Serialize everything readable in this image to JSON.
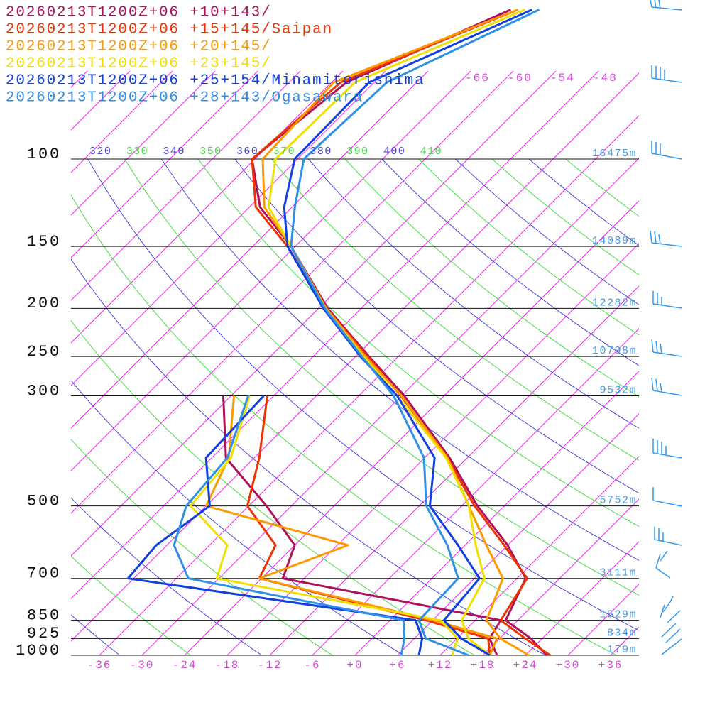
{
  "chart_data": {
    "type": "skewt",
    "pressure": [
      1000,
      925,
      850,
      700,
      600,
      500,
      400,
      300,
      250,
      200,
      150,
      125,
      100,
      70,
      50
    ],
    "ylim": [
      1000,
      100
    ],
    "yticks": [
      1000,
      925,
      850,
      700,
      500,
      300,
      250,
      200,
      150,
      100
    ],
    "tick_heights": [
      {
        "value": 179,
        "label": "179m"
      },
      {
        "value": 834,
        "label": "834m"
      },
      {
        "value": 1529,
        "label": "1529m"
      },
      {
        "value": 3111,
        "label": "3111m"
      },
      {
        "value": 5752,
        "label": "5752m"
      },
      {
        "value": 9532,
        "label": "9532m"
      },
      {
        "value": 10798,
        "label": "10798m"
      },
      {
        "value": 12282,
        "label": "12282m"
      },
      {
        "value": 14089,
        "label": "14089m"
      },
      {
        "value": 16475,
        "label": "16475m"
      }
    ],
    "xlim": [
      -40,
      40
    ],
    "xticks": [
      -36,
      -30,
      -24,
      -18,
      -12,
      {
        "value": -6,
        "label": "-6"
      },
      {
        "value": 0,
        "label": "+0"
      },
      {
        "value": 6,
        "label": "+6"
      },
      {
        "value": 12,
        "label": "+12"
      },
      {
        "value": 18,
        "label": "+18"
      },
      {
        "value": 24,
        "label": "+24"
      },
      {
        "value": 30,
        "label": "+30"
      },
      {
        "value": 36,
        "label": "+36"
      }
    ],
    "isotherm_labels": [
      -66,
      -60,
      -54,
      -48
    ],
    "isotherm_color": "#dd33dd",
    "theta_labels": [
      320,
      330,
      340,
      350,
      360,
      370,
      380,
      390,
      400,
      410
    ],
    "adiabat_colors": [
      "#4848dd",
      "#44dd44"
    ],
    "series": [
      {
        "name": "20260213T1200Z+06 +10+143/",
        "color": "#b0105a",
        "temperature": [
          27,
          22.4,
          16.3,
          13.2,
          6,
          -3.8,
          -14.5,
          -29.6,
          -40.1,
          -52.7,
          -66.6,
          -76.5,
          -84.4,
          -81.9,
          -69
        ],
        "dewpoint": [
          20,
          16.6,
          15.6,
          -21,
          -24,
          -33.5,
          -46,
          -55.1,
          null,
          null,
          null,
          null,
          null,
          null,
          null
        ]
      },
      {
        "name": "20260213T1200Z+06 +15+145/Saipan",
        "color": "#ee3300",
        "temperature": [
          27.5,
          21.6,
          15.6,
          13.4,
          5.5,
          -4.2,
          -14.8,
          -30.1,
          -40.3,
          -52.9,
          -67.1,
          -77.1,
          -84.4,
          -82.7,
          -68
        ],
        "dewpoint": [
          19,
          16.4,
          5.1,
          -24.3,
          -26.7,
          -36.2,
          -41.3,
          -48.9,
          null,
          null,
          null,
          null,
          null,
          null,
          null
        ]
      },
      {
        "name": "20260213T1200Z+06 +20+145/",
        "color": "#ff9900",
        "temperature": [
          24.5,
          18.1,
          13.6,
          10,
          3,
          -5,
          -14.8,
          -30,
          -40.6,
          -52.9,
          -66.6,
          -75.9,
          -82.9,
          -83.7,
          -68
        ],
        "dewpoint": [
          19,
          17.6,
          6.1,
          -24.3,
          -16.5,
          -42,
          -45.6,
          -53.6,
          null,
          null,
          null,
          null,
          null,
          null,
          null
        ]
      },
      {
        "name": "20260213T1200Z+06 +23+145/",
        "color": "#f0e000",
        "temperature": [
          19,
          13.6,
          10.1,
          7.4,
          1.5,
          -5,
          -15,
          -30.6,
          -40.9,
          -53.1,
          -66.6,
          -75.3,
          -81.1,
          -80.7,
          -67
        ],
        "dewpoint": [
          13.7,
          12.1,
          7.1,
          -30.3,
          -33.5,
          -44.2,
          -45.3,
          -51.4,
          null,
          null,
          null,
          null,
          null,
          null,
          null
        ]
      },
      {
        "name": "20260213T1200Z+06 +25+154/Minamitorishima",
        "color": "#1040e0",
        "temperature": [
          19,
          12.6,
          7.6,
          6.7,
          -1,
          -10.5,
          -16.6,
          -30.6,
          -41.3,
          -53.3,
          -67.1,
          -73.1,
          -78.4,
          -78.7,
          -66
        ],
        "dewpoint": [
          9,
          7.1,
          3.6,
          -42.8,
          -43.5,
          -41.5,
          -48.8,
          -49.4,
          null,
          null,
          null,
          null,
          null,
          null,
          null
        ]
      },
      {
        "name": "20260213T1200Z+06 +28+143/Ogasawara",
        "color": "#3090e8",
        "temperature": [
          16,
          7.6,
          4.1,
          3.7,
          -2.5,
          -11,
          -18.1,
          -31.1,
          -41.1,
          -53.1,
          -66.6,
          -71.6,
          -77.1,
          -76.2,
          -65
        ],
        "dewpoint": [
          6.5,
          4.6,
          1.9,
          -34.3,
          -41,
          -44.8,
          -45.8,
          -51.6,
          null,
          null,
          null,
          null,
          null,
          null,
          null
        ]
      }
    ]
  }
}
